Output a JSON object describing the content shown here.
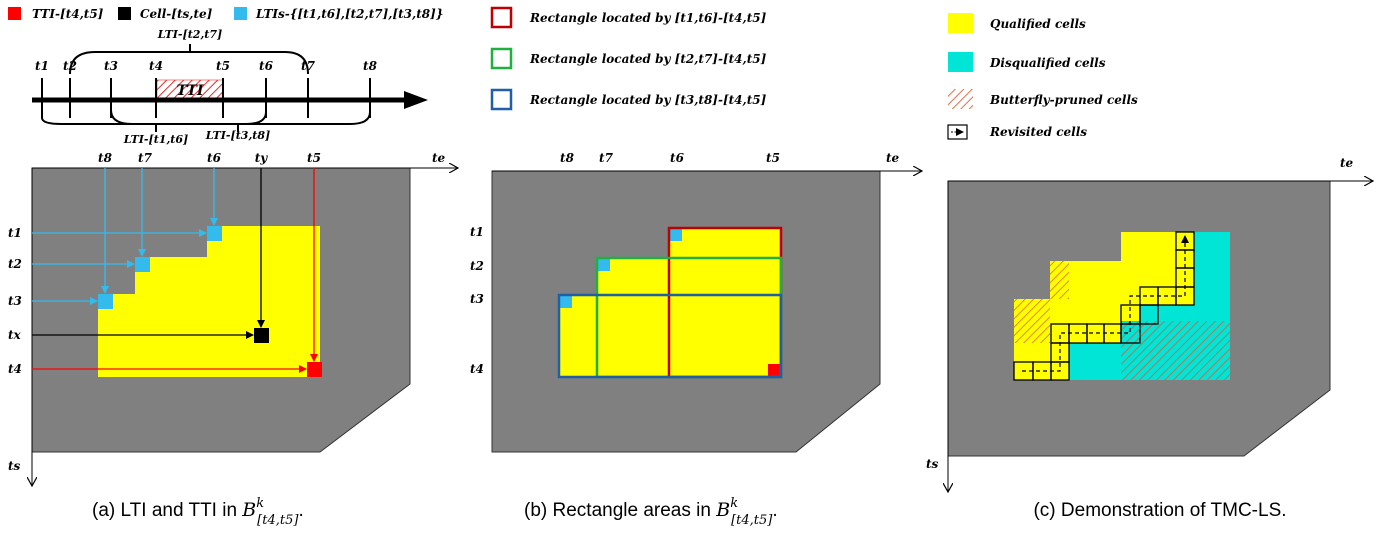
{
  "colors": {
    "tti": "#ff0000",
    "cell": "#000000",
    "lti": "#33bbee",
    "background": "#808080",
    "qualified": "#ffff00",
    "disqualified": "#00e5d5",
    "rect_red": "#c00000",
    "rect_green": "#20b040",
    "rect_blue": "#1f5fa8",
    "hatch": "#e06030"
  },
  "legend_a": {
    "tti": "TTI-[t4,t5]",
    "cell": "Cell-[ts,te]",
    "ltis": "LTIs-{[t1,t6],[t2,t7],[t3,t8]}"
  },
  "timeline": {
    "tick_labels": [
      "t1",
      "t2",
      "t3",
      "t4",
      "t5",
      "t6",
      "t7",
      "t8"
    ],
    "tti_label": "TTI",
    "lti_top": "LTI-[t2,t7]",
    "lti_bottom_left": "LTI-[t1,t6]",
    "lti_bottom_right": "LTI-[t3,t8]"
  },
  "panel_a": {
    "axis_te": "te",
    "axis_ts": "ts",
    "col_labels": [
      "t8",
      "t7",
      "t6",
      "ty",
      "t5"
    ],
    "row_labels": [
      "t1",
      "t2",
      "t3",
      "tx",
      "t4"
    ],
    "caption_prefix": "(a) LTI and TTI in ",
    "caption_math": "B",
    "caption_sup": "k",
    "caption_sub": "[t4,t5]",
    "caption_suffix": "."
  },
  "panel_b": {
    "legend": [
      "Rectangle located by [t1,t6]-[t4,t5]",
      "Rectangle located by [t2,t7]-[t4,t5]",
      "Rectangle located by [t3,t8]-[t4,t5]"
    ],
    "axis_te": "te",
    "col_labels": [
      "t8",
      "t7",
      "t6",
      "t5"
    ],
    "row_labels": [
      "t1",
      "t2",
      "t3",
      "t4"
    ],
    "caption_prefix": "(b) Rectangle areas in ",
    "caption_math": "B",
    "caption_sup": "k",
    "caption_sub": "[t4,t5]",
    "caption_suffix": "."
  },
  "panel_c": {
    "legend": [
      "Qualified cells",
      "Disqualified cells",
      "Butterfly-pruned cells",
      "Revisited cells"
    ],
    "axis_te": "te",
    "axis_ts": "ts",
    "caption": "(c) Demonstration of TMC-LS."
  }
}
